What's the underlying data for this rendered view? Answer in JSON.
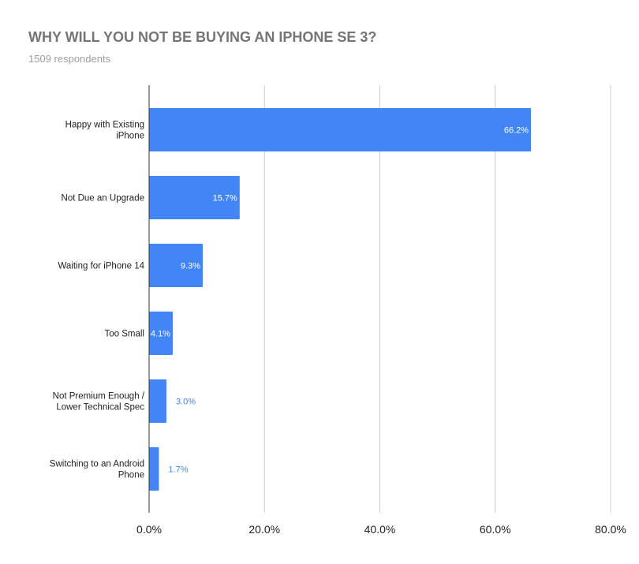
{
  "chart_data": {
    "type": "bar",
    "orientation": "horizontal",
    "title": "WHY WILL YOU NOT BE BUYING AN IPHONE SE 3?",
    "subtitle": "1509 respondents",
    "categories": [
      [
        "Happy with Existing",
        "iPhone"
      ],
      [
        "Not Due an Upgrade"
      ],
      [
        "Waiting for iPhone 14"
      ],
      [
        "Too Small"
      ],
      [
        "Not Premium Enough /",
        "Lower Technical Spec"
      ],
      [
        "Switching to an Android",
        "Phone"
      ]
    ],
    "values": [
      66.2,
      15.7,
      9.3,
      4.1,
      3.0,
      1.7
    ],
    "data_labels": [
      "66.2%",
      "15.7%",
      "9.3%",
      "4.1%",
      "3.0%",
      "1.7%"
    ],
    "xlim": [
      0,
      80
    ],
    "x_ticks": [
      0,
      20,
      40,
      60,
      80
    ],
    "x_tick_labels": [
      "0.0%",
      "20.0%",
      "40.0%",
      "60.0%",
      "80.0%"
    ],
    "grid": "vertical",
    "legend": "none",
    "colors": {
      "bar": "#4285f4",
      "label_inside": "#ffffff",
      "label_outside": "#4285f4",
      "gridline": "#cccccc",
      "axis": "#333333"
    }
  }
}
